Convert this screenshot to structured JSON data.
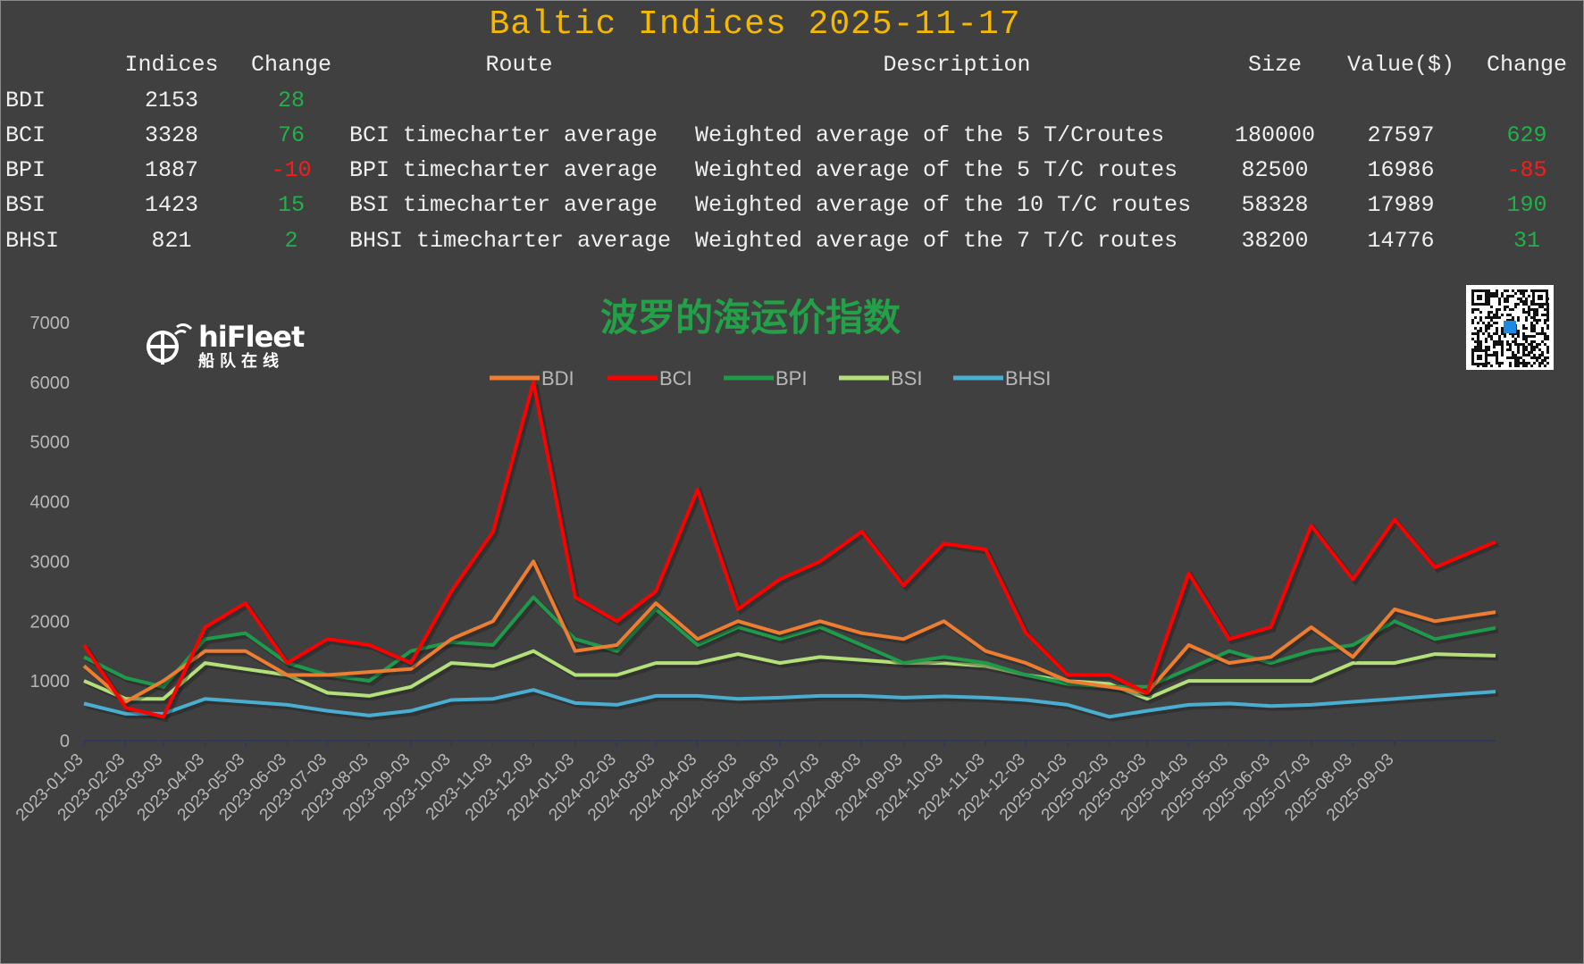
{
  "header": {
    "title": "Baltic Indices 2025-11-17"
  },
  "table": {
    "columns": [
      "Indices",
      "Change",
      "Route",
      "Description",
      "Size",
      "Value($)",
      "Change"
    ],
    "rows": [
      {
        "name": "BDI",
        "index": "2153",
        "change": "28",
        "route": "",
        "description": "",
        "size": "",
        "value": "",
        "value_change": ""
      },
      {
        "name": "BCI",
        "index": "3328",
        "change": "76",
        "route": "BCI timecharter average",
        "description": "Weighted average of the 5 T/Croutes",
        "size": "180000",
        "value": "27597",
        "value_change": "629"
      },
      {
        "name": "BPI",
        "index": "1887",
        "change": "-10",
        "route": "BPI timecharter average",
        "description": "Weighted average of the 5 T/C routes",
        "size": "82500",
        "value": "16986",
        "value_change": "-85"
      },
      {
        "name": "BSI",
        "index": "1423",
        "change": "15",
        "route": "BSI timecharter average",
        "description": "Weighted average of the 10 T/C routes",
        "size": "58328",
        "value": "17989",
        "value_change": "190"
      },
      {
        "name": "BHSI",
        "index": "821",
        "change": "2",
        "route": "BHSI timecharter average",
        "description": "Weighted average of the 7 T/C routes",
        "size": "38200",
        "value": "14776",
        "value_change": "31"
      }
    ]
  },
  "logo": {
    "name": "hiFleet",
    "sub": "船队在线"
  },
  "chart_data": {
    "type": "line",
    "title": "波罗的海运价指数",
    "xlabel": "",
    "ylabel": "",
    "ylim": [
      0,
      7000
    ],
    "yticks": [
      "0",
      "1000",
      "2000",
      "3000",
      "4000",
      "5000",
      "6000",
      "7000"
    ],
    "legend_position": "top-center",
    "xticks": [
      "2023-01-03",
      "2023-02-03",
      "2023-03-03",
      "2023-04-03",
      "2023-05-03",
      "2023-06-03",
      "2023-07-03",
      "2023-08-03",
      "2023-09-03",
      "2023-10-03",
      "2023-11-03",
      "2023-12-03",
      "2024-01-03",
      "2024-02-03",
      "2024-03-03",
      "2024-04-03",
      "2024-05-03",
      "2024-06-03",
      "2024-07-03",
      "2024-08-03",
      "2024-09-03",
      "2024-10-03",
      "2024-11-03",
      "2024-12-03",
      "2025-01-03",
      "2025-02-03",
      "2025-03-03",
      "2025-04-03",
      "2025-05-03",
      "2025-06-03",
      "2025-07-03",
      "2025-08-03",
      "2025-09-03"
    ],
    "x": [
      "2023-01-03",
      "2023-02-03",
      "2023-03-03",
      "2023-04-03",
      "2023-05-03",
      "2023-06-03",
      "2023-07-03",
      "2023-08-03",
      "2023-09-03",
      "2023-10-03",
      "2023-11-03",
      "2023-12-03",
      "2024-01-03",
      "2024-02-03",
      "2024-03-03",
      "2024-04-03",
      "2024-05-03",
      "2024-06-03",
      "2024-07-03",
      "2024-08-03",
      "2024-09-03",
      "2024-10-03",
      "2024-11-03",
      "2024-12-03",
      "2025-01-03",
      "2025-02-03",
      "2025-03-03",
      "2025-04-03",
      "2025-05-03",
      "2025-06-03",
      "2025-07-03",
      "2025-08-03",
      "2025-09-03",
      "2025-10-03",
      "2025-11-17"
    ],
    "series": [
      {
        "name": "BDI",
        "color": "#ed7d31",
        "values": [
          1250,
          650,
          1000,
          1500,
          1500,
          1100,
          1100,
          1150,
          1200,
          1700,
          2000,
          3000,
          1500,
          1600,
          2300,
          1700,
          2000,
          1800,
          2000,
          1800,
          1700,
          2000,
          1500,
          1300,
          1000,
          900,
          800,
          1600,
          1300,
          1400,
          1900,
          1400,
          2200,
          2000,
          2153
        ]
      },
      {
        "name": "BCI",
        "color": "#ff0000",
        "values": [
          1600,
          550,
          400,
          1900,
          2300,
          1300,
          1700,
          1600,
          1300,
          2500,
          3500,
          6000,
          2400,
          2000,
          2500,
          4200,
          2200,
          2700,
          3000,
          3500,
          2600,
          3300,
          3200,
          1800,
          1100,
          1100,
          800,
          2800,
          1700,
          1900,
          3600,
          2700,
          3700,
          2900,
          3328
        ]
      },
      {
        "name": "BPI",
        "color": "#1e9a4a",
        "values": [
          1400,
          1050,
          900,
          1700,
          1800,
          1300,
          1100,
          1000,
          1500,
          1650,
          1600,
          2400,
          1700,
          1500,
          2200,
          1600,
          1900,
          1700,
          1900,
          1600,
          1300,
          1400,
          1300,
          1100,
          950,
          900,
          900,
          1200,
          1500,
          1300,
          1500,
          1600,
          2000,
          1700,
          1887
        ]
      },
      {
        "name": "BSI",
        "color": "#b4e07a",
        "values": [
          1000,
          700,
          700,
          1300,
          1200,
          1100,
          800,
          750,
          900,
          1300,
          1250,
          1500,
          1100,
          1100,
          1300,
          1300,
          1450,
          1300,
          1400,
          1350,
          1300,
          1300,
          1250,
          1100,
          1000,
          950,
          700,
          1000,
          1000,
          1000,
          1000,
          1300,
          1300,
          1450,
          1423
        ]
      },
      {
        "name": "BHSI",
        "color": "#4aaed0",
        "values": [
          620,
          450,
          450,
          700,
          650,
          600,
          500,
          420,
          500,
          680,
          700,
          850,
          630,
          600,
          750,
          750,
          700,
          720,
          750,
          750,
          720,
          740,
          720,
          680,
          600,
          400,
          500,
          600,
          620,
          580,
          600,
          650,
          700,
          750,
          821
        ]
      }
    ]
  }
}
